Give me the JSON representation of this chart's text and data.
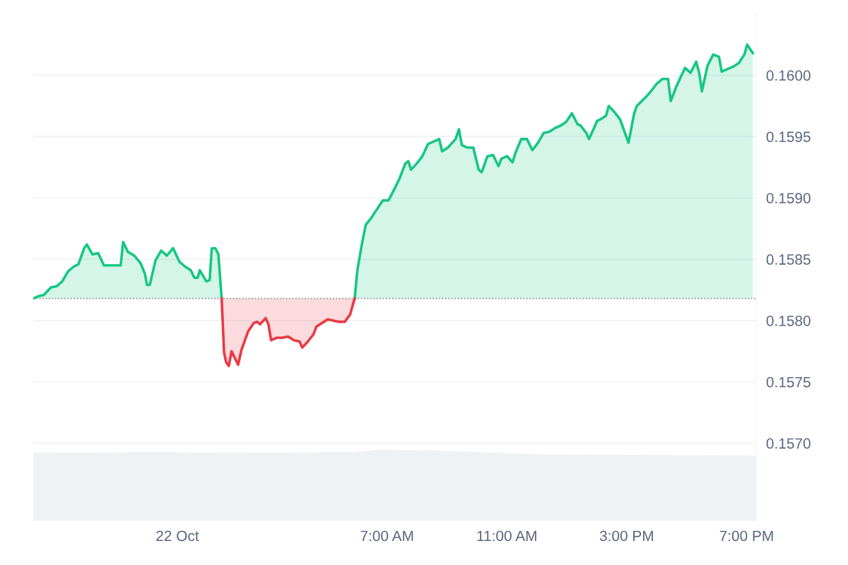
{
  "chart_data": {
    "type": "line",
    "xlim": [
      -4.81,
      19.32
    ],
    "ylim": [
      0.15637,
      0.16051
    ],
    "xticks": [
      {
        "value": 0,
        "label": "22 Oct"
      },
      {
        "value": 7,
        "label": "7:00 AM"
      },
      {
        "value": 11,
        "label": "11:00 AM"
      },
      {
        "value": 15,
        "label": "3:00 PM"
      },
      {
        "value": 19,
        "label": "7:00 PM"
      }
    ],
    "yticks": [
      {
        "value": 0.157,
        "label": "0.1570"
      },
      {
        "value": 0.1575,
        "label": "0.1575"
      },
      {
        "value": 0.158,
        "label": "0.1580"
      },
      {
        "value": 0.1585,
        "label": "0.1585"
      },
      {
        "value": 0.159,
        "label": "0.1590"
      },
      {
        "value": 0.1595,
        "label": "0.1595"
      },
      {
        "value": 0.16,
        "label": "0.1600"
      }
    ],
    "grid": "y",
    "legend": false,
    "line_style": "solid",
    "marker": "none",
    "ref_lines": [
      {
        "axis": "y",
        "value": 0.15818,
        "color": "#888888",
        "line_style": "dotted"
      }
    ],
    "series": [
      {
        "type": "area",
        "color": "#eff2f5",
        "x": [
          -4.81,
          -0.5,
          1.63,
          5.87,
          6.81,
          8.7,
          12.0,
          19.32
        ],
        "values": [
          0.15692,
          0.15693,
          0.15692,
          0.15693,
          0.15695,
          0.15694,
          0.15691,
          0.1569
        ]
      },
      {
        "color": "#16c784",
        "x": [
          -4.81,
          -4.62,
          -4.45,
          -4.22,
          -4.03,
          -3.84,
          -3.65,
          -3.46,
          -3.3,
          -3.11,
          -3.02,
          -2.83,
          -2.64,
          -2.45,
          -2.26,
          -2.07,
          -1.89,
          -1.81,
          -1.65,
          -1.44,
          -1.23,
          -1.08,
          -1.01,
          -0.92,
          -0.73,
          -0.54,
          -0.35,
          -0.14,
          0.07,
          0.26,
          0.45,
          0.57,
          0.68,
          0.75,
          0.97,
          1.08,
          1.15,
          1.27,
          1.37,
          1.48,
          3.7,
          5.92,
          6.01,
          6.15,
          6.29,
          6.48,
          6.67,
          6.86,
          7.05,
          7.24,
          7.42,
          7.61,
          7.71,
          7.8,
          7.99,
          8.18,
          8.37,
          8.56,
          8.74,
          8.84,
          9.03,
          9.29,
          9.4,
          9.5,
          9.69,
          9.88,
          10.06,
          10.16,
          10.35,
          10.54,
          10.72,
          10.82,
          11.01,
          11.19,
          11.29,
          11.48,
          11.67,
          11.85,
          12.04,
          12.23,
          12.42,
          12.61,
          12.8,
          12.98,
          13.17,
          13.36,
          13.46,
          13.65,
          13.74,
          14.02,
          14.12,
          14.31,
          14.4,
          14.59,
          14.78,
          15.06,
          15.25,
          15.34,
          15.63,
          15.81,
          16.0,
          16.19,
          16.38,
          16.47,
          16.66,
          16.85,
          16.95,
          17.13,
          17.32,
          17.42,
          17.51,
          17.7,
          17.89,
          18.08,
          18.17,
          18.36,
          18.55,
          18.74,
          18.93,
          19.02,
          19.21
        ],
        "values": [
          0.15818,
          0.1582,
          0.15821,
          0.15827,
          0.15828,
          0.15832,
          0.1584,
          0.15844,
          0.15846,
          0.15859,
          0.15862,
          0.15854,
          0.15855,
          0.15845,
          0.15845,
          0.15845,
          0.15845,
          0.15864,
          0.15856,
          0.15853,
          0.15847,
          0.15838,
          0.15829,
          0.15829,
          0.15849,
          0.15857,
          0.15853,
          0.15859,
          0.15848,
          0.15844,
          0.15841,
          0.15835,
          0.15835,
          0.15841,
          0.15832,
          0.15833,
          0.15859,
          0.15859,
          0.15854,
          0.15818,
          null,
          0.15818,
          0.15841,
          0.15861,
          0.15878,
          0.15884,
          0.15891,
          0.15898,
          0.15898,
          0.15907,
          0.15916,
          0.15928,
          0.1593,
          0.15923,
          0.15928,
          0.15934,
          0.15944,
          0.15946,
          0.15948,
          0.15938,
          0.15941,
          0.15948,
          0.15956,
          0.15943,
          0.15941,
          0.15941,
          0.15923,
          0.15921,
          0.15934,
          0.15935,
          0.15926,
          0.15932,
          0.15934,
          0.15929,
          0.15937,
          0.15948,
          0.15948,
          0.15939,
          0.15945,
          0.15953,
          0.15954,
          0.15957,
          0.15959,
          0.15962,
          0.15969,
          0.1596,
          0.15959,
          0.15953,
          0.15948,
          0.15963,
          0.15964,
          0.15967,
          0.15975,
          0.1597,
          0.15964,
          0.15945,
          0.15969,
          0.15975,
          0.15982,
          0.15987,
          0.15993,
          0.15997,
          0.15997,
          0.15979,
          0.15991,
          0.16001,
          0.16006,
          0.16002,
          0.16011,
          0.16002,
          0.15987,
          0.16008,
          0.16017,
          0.16015,
          0.16003,
          0.16005,
          0.16007,
          0.1601,
          0.16017,
          0.16025,
          0.16018
        ]
      },
      {
        "color": "#ea3943",
        "x": [
          1.48,
          1.56,
          1.63,
          1.72,
          1.81,
          1.91,
          2.03,
          2.14,
          2.36,
          2.55,
          2.66,
          2.76,
          2.95,
          3.04,
          3.13,
          3.32,
          3.51,
          3.7,
          3.89,
          4.08,
          4.17,
          4.36,
          4.55,
          4.64,
          4.83,
          5.02,
          5.21,
          5.4,
          5.59,
          5.77,
          5.87,
          5.92
        ],
        "values": [
          0.15818,
          0.15774,
          0.15766,
          0.15763,
          0.15775,
          0.1577,
          0.15764,
          0.15776,
          0.15791,
          0.15798,
          0.15799,
          0.15797,
          0.15802,
          0.15797,
          0.15784,
          0.15786,
          0.15786,
          0.15787,
          0.15784,
          0.15783,
          0.15778,
          0.15783,
          0.15789,
          0.15795,
          0.15798,
          0.15801,
          0.158,
          0.15799,
          0.15799,
          0.15805,
          0.15814,
          0.15818
        ]
      }
    ]
  }
}
